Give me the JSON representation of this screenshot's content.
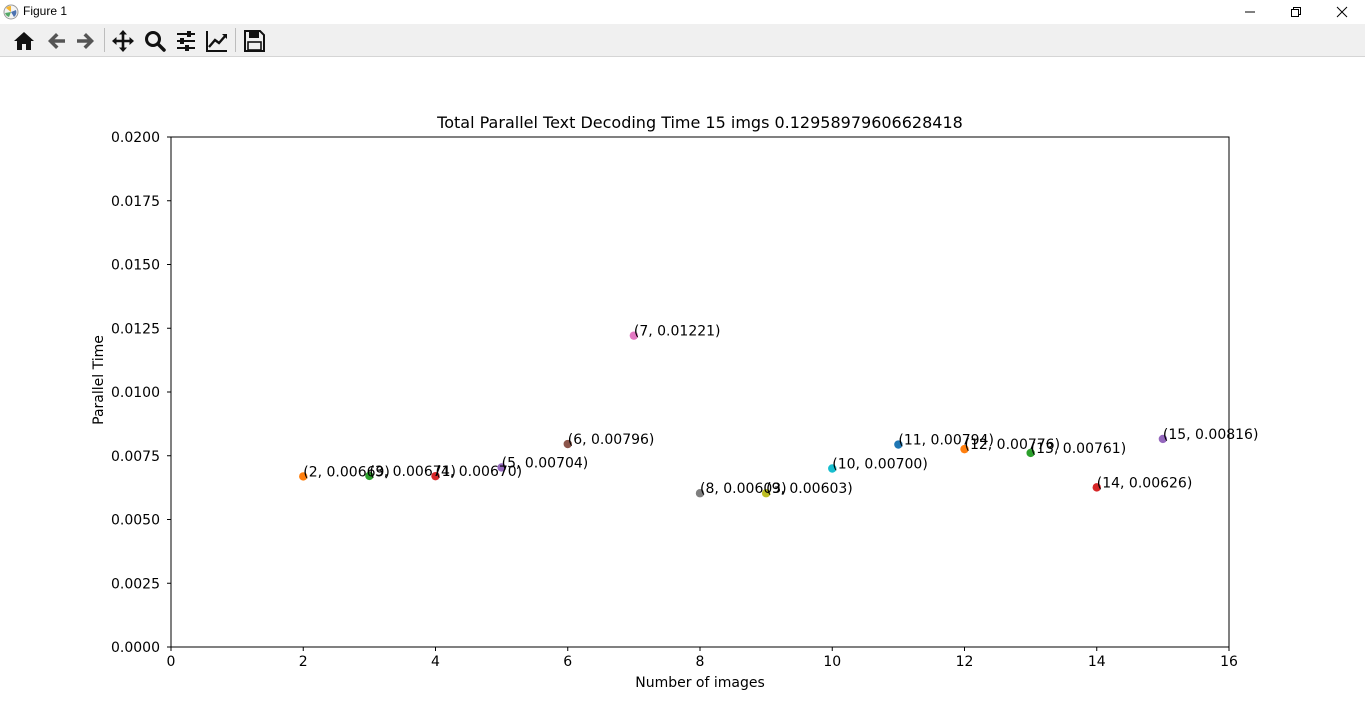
{
  "window": {
    "title": "Figure 1"
  },
  "toolbar": {
    "tools": [
      {
        "name": "home-icon"
      },
      {
        "name": "back-arrow-icon"
      },
      {
        "name": "forward-arrow-icon"
      },
      {
        "name": "pan-move-icon"
      },
      {
        "name": "zoom-magnifier-icon"
      },
      {
        "name": "subplots-sliders-icon"
      },
      {
        "name": "edit-axis-curve-icon"
      },
      {
        "name": "save-floppy-icon"
      }
    ]
  },
  "chart_data": {
    "type": "scatter",
    "title": "Total Parallel Text Decoding Time 15 imgs 0.12958979606628418",
    "xlabel": "Number of images",
    "ylabel": "Parallel Time",
    "xlim": [
      0,
      16
    ],
    "ylim": [
      0,
      0.02
    ],
    "xticks": [
      "0",
      "2",
      "4",
      "6",
      "8",
      "10",
      "12",
      "14",
      "16"
    ],
    "yticks": [
      "0.0000",
      "0.0025",
      "0.0050",
      "0.0075",
      "0.0100",
      "0.0125",
      "0.0150",
      "0.0175",
      "0.0200"
    ],
    "grid": false,
    "points": [
      {
        "x": 2,
        "y": 0.00669,
        "label": "(2, 0.00669)",
        "color": "#ff7f0e"
      },
      {
        "x": 3,
        "y": 0.00671,
        "label": "(3, 0.00671)",
        "color": "#2ca02c"
      },
      {
        "x": 4,
        "y": 0.0067,
        "label": "(4, 0.00670)",
        "color": "#d62728"
      },
      {
        "x": 5,
        "y": 0.00704,
        "label": "(5, 0.00704)",
        "color": "#9467bd"
      },
      {
        "x": 6,
        "y": 0.00796,
        "label": "(6, 0.00796)",
        "color": "#8c564b"
      },
      {
        "x": 7,
        "y": 0.01221,
        "label": "(7, 0.01221)",
        "color": "#e377c2"
      },
      {
        "x": 8,
        "y": 0.00603,
        "label": "(8, 0.00603)",
        "color": "#7f7f7f"
      },
      {
        "x": 9,
        "y": 0.00603,
        "label": "(9, 0.00603)",
        "color": "#bcbd22"
      },
      {
        "x": 10,
        "y": 0.007,
        "label": "(10, 0.00700)",
        "color": "#17becf"
      },
      {
        "x": 11,
        "y": 0.00794,
        "label": "(11, 0.00794)",
        "color": "#1f77b4"
      },
      {
        "x": 12,
        "y": 0.00776,
        "label": "(12, 0.00776)",
        "color": "#ff7f0e"
      },
      {
        "x": 13,
        "y": 0.00761,
        "label": "(13, 0.00761)",
        "color": "#2ca02c"
      },
      {
        "x": 14,
        "y": 0.00626,
        "label": "(14, 0.00626)",
        "color": "#d62728"
      },
      {
        "x": 15,
        "y": 0.00816,
        "label": "(15, 0.00816)",
        "color": "#9467bd"
      }
    ]
  }
}
